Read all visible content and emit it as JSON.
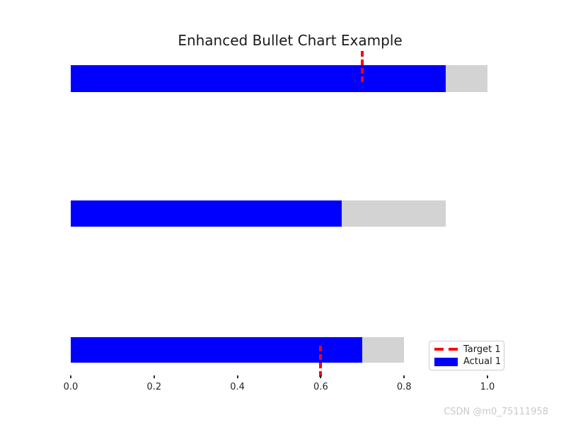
{
  "figure": {
    "watermark": "CSDN @m0_75111958"
  },
  "chart_data": {
    "type": "bar",
    "subtype": "bullet",
    "title": "Enhanced Bullet Chart Example",
    "orientation": "horizontal",
    "xlim": [
      0,
      1.0
    ],
    "x_ticks": [
      0.0,
      0.2,
      0.4,
      0.6,
      0.8,
      1.0
    ],
    "x_tick_labels": [
      "0.0",
      "0.2",
      "0.4",
      "0.6",
      "0.8",
      "1.0"
    ],
    "grid": false,
    "axis_spines_visible": false,
    "bullets": [
      {
        "row": 1,
        "range_max": 1.0,
        "actual": 0.9,
        "target": 0.7
      },
      {
        "row": 2,
        "range_max": 0.9,
        "actual": 0.65,
        "target": null
      },
      {
        "row": 3,
        "range_max": 0.8,
        "actual": 0.7,
        "target": 0.6
      }
    ],
    "legend": {
      "position": "lower right",
      "entries": [
        {
          "label": "Target 1",
          "marker": "dashed-line",
          "color": "#ff0000"
        },
        {
          "label": "Actual 1",
          "marker": "filled-rect",
          "color": "#0000ff"
        }
      ]
    },
    "colors": {
      "actual": "#0000ff",
      "range": "#d3d3d3",
      "target": "#ff0000",
      "tick": "#2b2b2b",
      "tick_text": "#262626",
      "title_text": "#1a1a1a",
      "watermark": "#c9c9c9"
    }
  }
}
